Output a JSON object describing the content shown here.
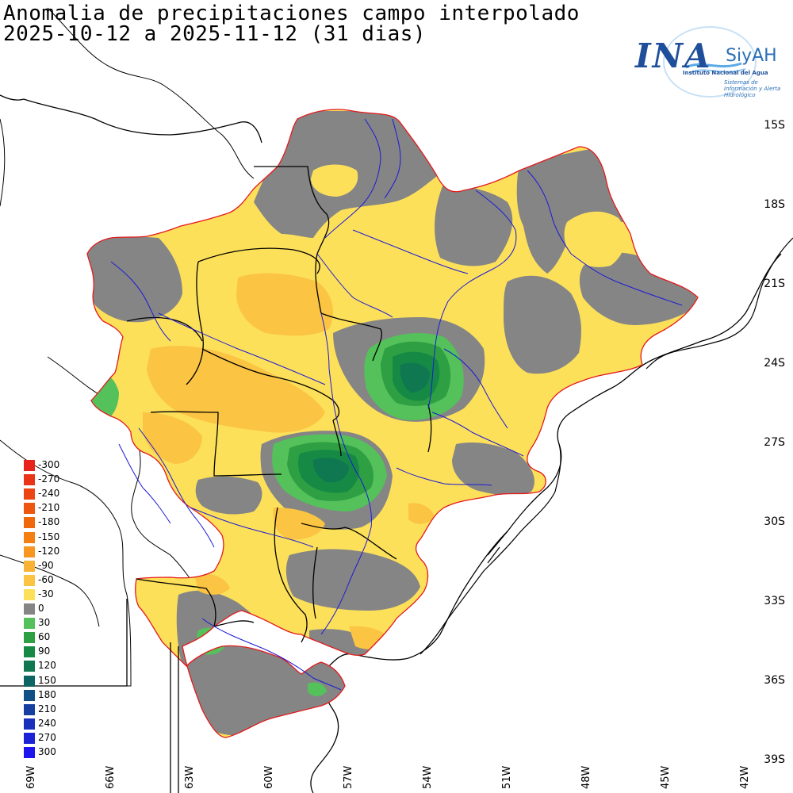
{
  "title": "Anomalia de precipitaciones campo interpolado",
  "subtitle": "2025-10-12 a 2025-11-12 (31 dias)",
  "logo": {
    "main": "INA",
    "secondary": "SiyAH",
    "subtitle_line1": "Instituto Nacional del Agua",
    "subtitle_line2": "Sistemas de Información y Alerta Hidrológico"
  },
  "latitude_labels": [
    "15S",
    "18S",
    "21S",
    "24S",
    "27S",
    "30S",
    "33S",
    "36S",
    "39S"
  ],
  "longitude_labels": [
    "69W",
    "66W",
    "63W",
    "60W",
    "57W",
    "54W",
    "51W",
    "48W",
    "45W",
    "42W"
  ],
  "legend": {
    "entries": [
      {
        "value": "-300",
        "color": "#e8231c"
      },
      {
        "value": "-270",
        "color": "#ea3417"
      },
      {
        "value": "-240",
        "color": "#ec4513"
      },
      {
        "value": "-210",
        "color": "#ee560f"
      },
      {
        "value": "-180",
        "color": "#f0680c"
      },
      {
        "value": "-150",
        "color": "#f47f12"
      },
      {
        "value": "-120",
        "color": "#f7971f"
      },
      {
        "value": "-90",
        "color": "#f9b233"
      },
      {
        "value": "-60",
        "color": "#fbc443"
      },
      {
        "value": "-30",
        "color": "#fde05a"
      },
      {
        "value": "0",
        "color": "#858585"
      },
      {
        "value": "30",
        "color": "#54c15b"
      },
      {
        "value": "60",
        "color": "#2ea043"
      },
      {
        "value": "90",
        "color": "#168a45"
      },
      {
        "value": "120",
        "color": "#0f7850"
      },
      {
        "value": "150",
        "color": "#0d6563"
      },
      {
        "value": "180",
        "color": "#124f84"
      },
      {
        "value": "210",
        "color": "#173fa0"
      },
      {
        "value": "240",
        "color": "#1a30bd"
      },
      {
        "value": "270",
        "color": "#1c22d6"
      },
      {
        "value": "300",
        "color": "#1e14ee"
      }
    ]
  },
  "colors": {
    "basin_outline": "#e31a1c",
    "rivers": "#1a1ad6",
    "borders": "#000000",
    "coast": "#000000"
  }
}
